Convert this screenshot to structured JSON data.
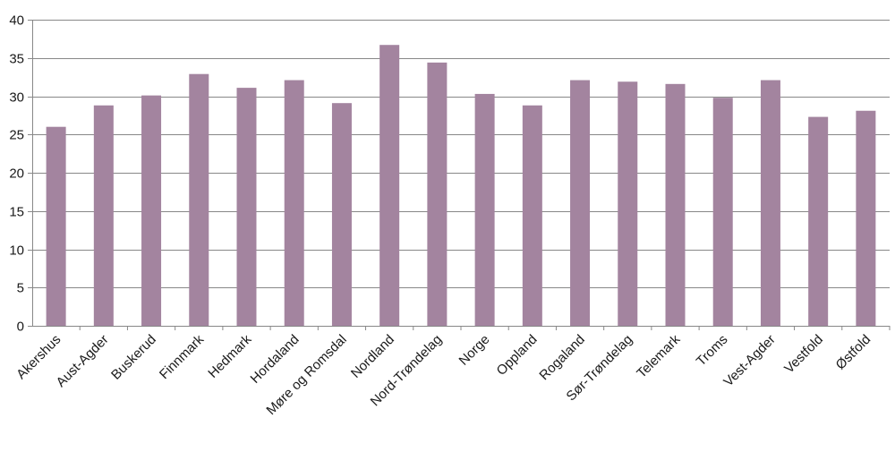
{
  "chart_data": {
    "type": "bar",
    "categories": [
      "Akershus",
      "Aust-Agder",
      "Buskerud",
      "Finnmark",
      "Hedmark",
      "Hordaland",
      "Møre og Romsdal",
      "Nordland",
      "Nord-Trøndelag",
      "Norge",
      "Oppland",
      "Rogaland",
      "Sør-Trøndelag",
      "Telemark",
      "Troms",
      "Vest-Agder",
      "Vestfold",
      "Østfold"
    ],
    "values": [
      26.0,
      28.8,
      30.1,
      32.9,
      31.1,
      32.1,
      29.1,
      36.7,
      34.4,
      30.3,
      28.8,
      32.1,
      31.9,
      31.6,
      29.8,
      32.1,
      27.3,
      28.1
    ],
    "title": "",
    "xlabel": "",
    "ylabel": "",
    "ylim": [
      0,
      40
    ],
    "yticks": [
      0,
      5,
      10,
      15,
      20,
      25,
      30,
      35,
      40
    ],
    "grid": true,
    "legend": "none",
    "colors": {
      "bar": "#a3849f",
      "grid": "#888888",
      "axis": "#888888",
      "text": "#1a1a1a"
    }
  }
}
